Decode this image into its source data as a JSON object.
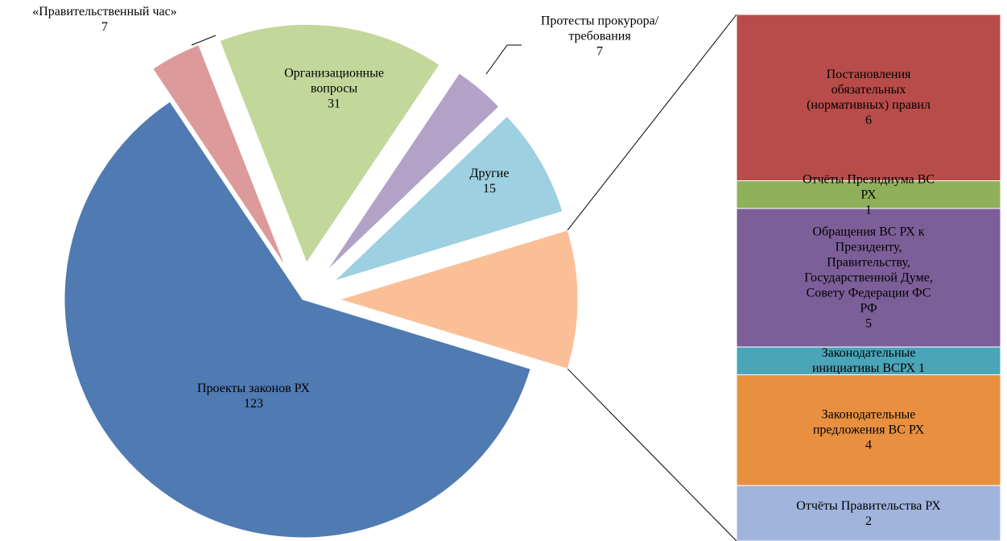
{
  "chart_data": {
    "type": "pie",
    "categories": [
      "Проекты законов РХ",
      "«Правительственный час»",
      "Организационные вопросы",
      "Протесты прокурора/требования",
      "Другие",
      null
    ],
    "values": [
      123,
      7,
      31,
      7,
      15,
      19
    ],
    "colors": [
      "#4f7ab2",
      "#dc9a9a",
      "#c3d79b",
      "#b2a2c8",
      "#9dd0e0",
      "#fbbf97"
    ],
    "bar": {
      "categories": [
        "Постановления обязательных (нормативных) правил",
        "Отчёты Президиума ВС РХ",
        "Обращения ВС РХ к Президенту, Правительству, Государственной Думе, Совету Федерации ФС РФ",
        "Законодательные инициативы ВСРХ",
        "Законодательные предложения ВС РХ",
        "Отчёты Правительства РХ"
      ],
      "values": [
        6,
        1,
        5,
        1,
        4,
        2
      ],
      "colors": [
        "#b84c4a",
        "#8fb05a",
        "#7c5f98",
        "#4aa5b8",
        "#e8903f",
        "#a0b4dc"
      ]
    }
  }
}
